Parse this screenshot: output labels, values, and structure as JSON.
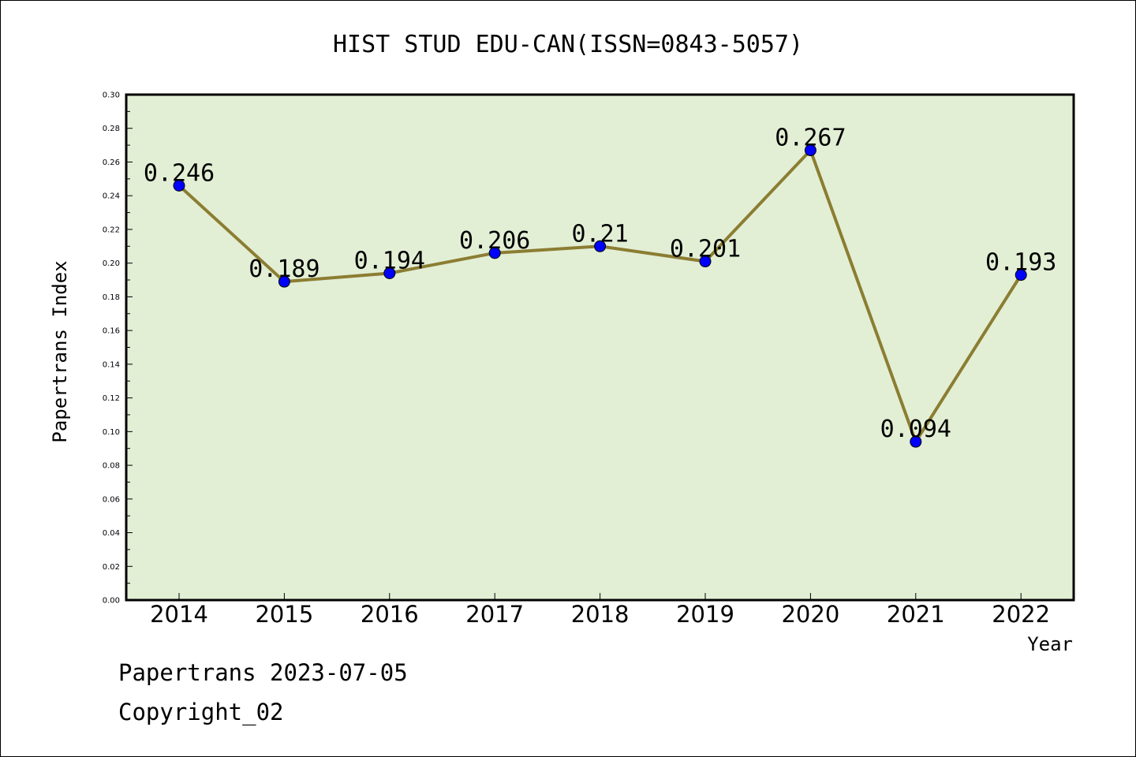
{
  "chart_data": {
    "type": "line",
    "title": "HIST STUD EDU-CAN(ISSN=0843-5057)",
    "xlabel": "Year",
    "ylabel": "Papertrans Index",
    "categories": [
      "2014",
      "2015",
      "2016",
      "2017",
      "2018",
      "2019",
      "2020",
      "2021",
      "2022"
    ],
    "series": [
      {
        "values": [
          0.246,
          0.189,
          0.194,
          0.206,
          0.21,
          0.201,
          0.267,
          0.094,
          0.193
        ],
        "data_labels": [
          "0.246",
          "0.189",
          "0.194",
          "0.206",
          "0.21",
          "0.201",
          "0.267",
          "0.094",
          "0.193"
        ]
      }
    ],
    "ylim": [
      0,
      0.3
    ],
    "yticks": [
      "0.00",
      "0.02",
      "0.04",
      "0.06",
      "0.08",
      "0.10",
      "0.12",
      "0.14",
      "0.16",
      "0.18",
      "0.20",
      "0.22",
      "0.24",
      "0.26",
      "0.28",
      "0.30"
    ],
    "grid": false,
    "legend": "none",
    "colors": {
      "plot_background": "#e2efd5",
      "line": "#8b7d32",
      "marker": "#0000ff"
    }
  },
  "footer": {
    "source": "Papertrans 2023-07-05",
    "copyright": "Copyright_02"
  }
}
